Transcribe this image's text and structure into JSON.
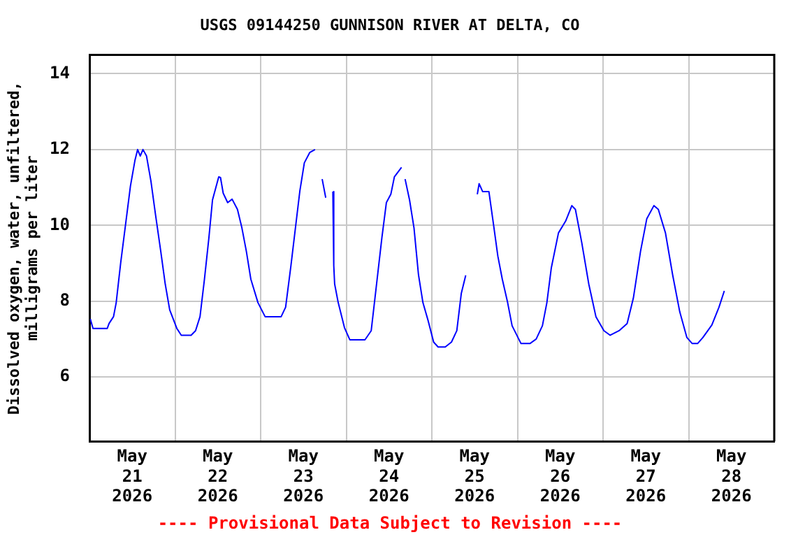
{
  "chart_data": {
    "type": "line",
    "title": "USGS 09144250 GUNNISON RIVER AT DELTA, CO",
    "ylabel": "Dissolved oxygen, water, unfiltered, milligrams per liter",
    "annotations": [
      "---- Provisional Data Subject to Revision ----"
    ],
    "xlim": [
      "2026-05-21",
      "2026-05-29"
    ],
    "xticks": [
      {
        "value": "2026-05-21T12:00",
        "label": "May 21 2026"
      },
      {
        "value": "2026-05-22",
        "label": null
      },
      {
        "value": "2026-05-22T12:00",
        "label": "May 22 2026"
      },
      {
        "value": "2026-05-23",
        "label": null
      },
      {
        "value": "2026-05-23T12:00",
        "label": "May 23 2026"
      },
      {
        "value": "2026-05-24",
        "label": null
      },
      {
        "value": "2026-05-24T12:00",
        "label": "May 24 2026"
      },
      {
        "value": "2026-05-25",
        "label": null
      },
      {
        "value": "2026-05-25T12:00",
        "label": "May 25 2026"
      },
      {
        "value": "2026-05-26",
        "label": null
      },
      {
        "value": "2026-05-26T12:00",
        "label": "May 26 2026"
      },
      {
        "value": "2026-05-27",
        "label": null
      },
      {
        "value": "2026-05-27T12:00",
        "label": "May 27 2026"
      },
      {
        "value": "2026-05-28",
        "label": null
      },
      {
        "value": "2026-05-28T12:00",
        "label": "May 28 2026"
      }
    ],
    "ylim": [
      4.3,
      14.5
    ],
    "yticks": [
      6,
      8,
      10,
      12,
      14
    ],
    "grid": true,
    "legend": false,
    "series": [
      {
        "color": "#0000ff",
        "x": [
          "2026-05-21T00:15",
          "2026-05-21T01:00",
          "2026-05-21T05:00",
          "2026-05-21T05:30",
          "2026-05-21T06:45",
          "2026-05-21T07:30",
          "2026-05-21T08:45",
          "2026-05-21T10:00",
          "2026-05-21T11:30",
          "2026-05-21T12:45",
          "2026-05-21T13:30",
          "2026-05-21T14:15",
          "2026-05-21T15:00",
          "2026-05-21T16:00",
          "2026-05-21T17:15",
          "2026-05-21T18:30",
          "2026-05-21T20:00",
          "2026-05-21T21:15",
          "2026-05-21T22:30",
          "2026-05-22T00:30",
          "2026-05-22T01:45",
          "2026-05-22T04:30",
          "2026-05-22T05:45",
          "2026-05-22T07:00",
          "2026-05-22T08:15",
          "2026-05-22T09:30",
          "2026-05-22T10:30",
          "2026-05-22T12:15",
          "2026-05-22T12:45",
          "2026-05-22T13:30",
          "2026-05-22T14:45",
          "2026-05-22T16:00",
          "2026-05-22T17:30",
          "2026-05-22T18:45",
          "2026-05-22T20:00",
          "2026-05-22T21:15",
          "2026-05-22T23:15",
          "2026-05-23T01:15",
          "2026-05-23T05:45",
          "2026-05-23T07:00",
          "2026-05-23T08:30",
          "2026-05-23T09:45",
          "2026-05-23T11:00",
          "2026-05-23T12:15",
          "2026-05-23T13:45",
          "2026-05-23T15:15",
          "2026-05-23T16:15",
          "2026-05-23T17:15",
          "2026-05-23T18:15",
          "2026-05-23T19:15",
          "2026-05-23T20:15",
          "2026-05-23T20:30",
          "2026-05-23T20:45",
          "2026-05-23T21:45",
          "2026-05-23T23:30",
          "2026-05-24T01:00",
          "2026-05-24T05:15",
          "2026-05-24T07:00",
          "2026-05-24T08:30",
          "2026-05-24T10:00",
          "2026-05-24T11:15",
          "2026-05-24T12:30",
          "2026-05-24T13:30",
          "2026-05-24T15:30",
          "2026-05-24T16:00",
          "2026-05-24T16:30",
          "2026-05-24T17:45",
          "2026-05-24T19:00",
          "2026-05-24T20:15",
          "2026-05-24T21:30",
          "2026-05-24T23:00",
          "2026-05-25T00:30",
          "2026-05-25T01:45",
          "2026-05-25T03:45",
          "2026-05-25T05:30",
          "2026-05-25T07:00",
          "2026-05-25T08:15",
          "2026-05-25T09:30",
          "2026-05-25T11:00",
          "2026-05-25T12:45",
          "2026-05-25T13:15",
          "2026-05-25T14:15",
          "2026-05-25T16:00",
          "2026-05-25T17:15",
          "2026-05-25T18:30",
          "2026-05-25T19:45",
          "2026-05-25T21:15",
          "2026-05-25T22:30",
          "2026-05-26T01:00",
          "2026-05-26T03:30",
          "2026-05-26T05:15",
          "2026-05-26T07:00",
          "2026-05-26T08:15",
          "2026-05-26T09:30",
          "2026-05-26T11:30",
          "2026-05-26T13:30",
          "2026-05-26T15:15",
          "2026-05-26T16:15",
          "2026-05-26T18:00",
          "2026-05-26T20:00",
          "2026-05-26T22:00",
          "2026-05-27T00:15",
          "2026-05-27T02:00",
          "2026-05-27T04:30",
          "2026-05-27T06:45",
          "2026-05-27T08:30",
          "2026-05-27T10:30",
          "2026-05-27T12:15",
          "2026-05-27T14:15",
          "2026-05-27T15:30",
          "2026-05-27T17:30",
          "2026-05-27T19:30",
          "2026-05-27T21:30",
          "2026-05-27T23:30",
          "2026-05-28T01:00",
          "2026-05-28T02:30",
          "2026-05-28T04:00",
          "2026-05-28T06:30",
          "2026-05-28T08:30",
          "2026-05-28T10:00"
        ],
        "values": [
          7.53,
          7.28,
          7.28,
          7.41,
          7.59,
          7.96,
          9.0,
          9.93,
          11.04,
          11.71,
          12.0,
          11.83,
          12.0,
          11.83,
          11.16,
          10.3,
          9.31,
          8.45,
          7.77,
          7.28,
          7.1,
          7.1,
          7.22,
          7.59,
          8.58,
          9.68,
          10.67,
          11.28,
          11.26,
          10.85,
          10.6,
          10.69,
          10.42,
          9.93,
          9.31,
          8.58,
          7.96,
          7.59,
          7.59,
          7.84,
          8.94,
          9.93,
          10.91,
          11.65,
          11.92,
          12.0,
          null,
          11.22,
          10.73,
          null,
          10.89,
          8.94,
          8.45,
          7.96,
          7.3,
          6.98,
          6.98,
          7.22,
          8.45,
          9.68,
          10.6,
          10.82,
          11.28,
          11.53,
          null,
          11.22,
          10.67,
          9.93,
          8.7,
          7.96,
          7.47,
          6.92,
          6.79,
          6.79,
          6.92,
          7.22,
          8.2,
          8.68,
          null,
          10.82,
          11.1,
          10.89,
          10.89,
          10.05,
          9.19,
          8.58,
          7.96,
          7.35,
          6.88,
          6.88,
          7.0,
          7.35,
          7.96,
          8.88,
          9.8,
          10.11,
          10.52,
          10.42,
          9.56,
          8.45,
          7.59,
          7.22,
          7.1,
          7.22,
          7.41,
          8.08,
          9.31,
          10.17,
          10.52,
          10.42,
          9.8,
          8.7,
          7.72,
          7.04,
          6.88,
          6.88,
          7.04,
          7.37,
          7.84,
          8.27
        ]
      }
    ]
  }
}
